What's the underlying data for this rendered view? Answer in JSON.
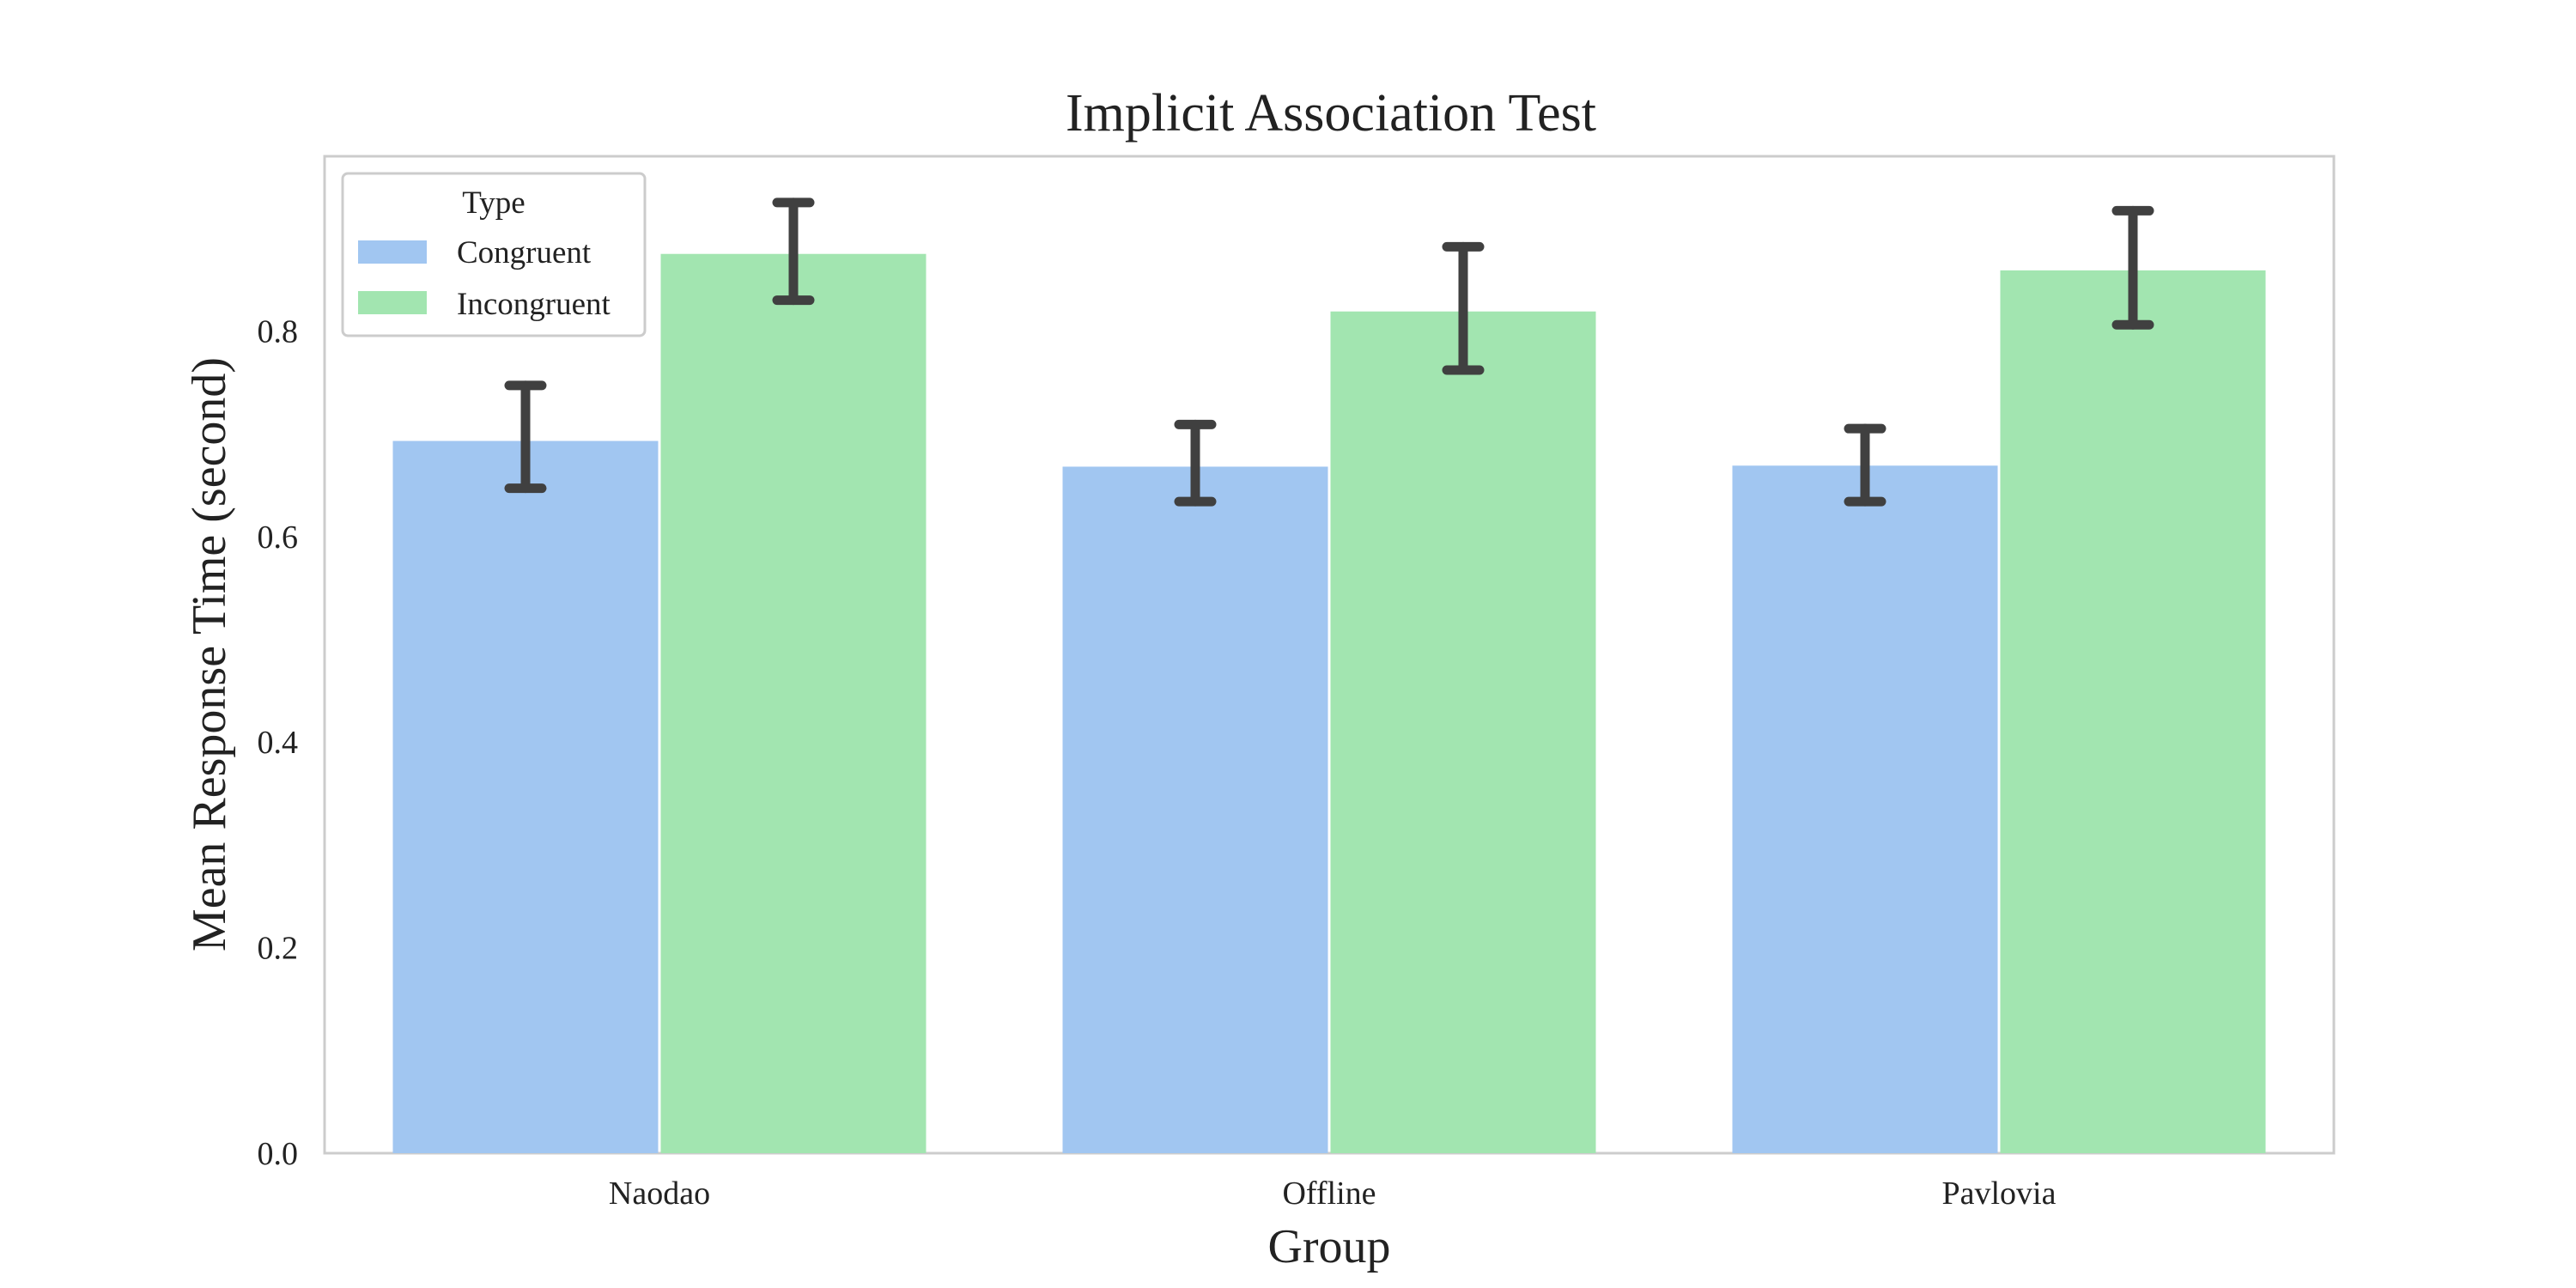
{
  "chart_data": {
    "type": "bar",
    "title": "Implicit Association Test",
    "xlabel": "Group",
    "ylabel": "Mean Response Time (second)",
    "categories": [
      "Naodao",
      "Offline",
      "Pavlovia"
    ],
    "ylim": [
      0,
      0.97
    ],
    "yticks": [
      0.0,
      0.2,
      0.4,
      0.6,
      0.8
    ],
    "ytick_labels": [
      "0.0",
      "0.2",
      "0.4",
      "0.6",
      "0.8"
    ],
    "grid": false,
    "legend": {
      "title": "Type",
      "placement": "top-left"
    },
    "series": [
      {
        "name": "Congruent",
        "color": "#a1c6f1",
        "values": [
          0.693,
          0.668,
          0.669
        ],
        "error_low": [
          0.647,
          0.634,
          0.634
        ],
        "error_high": [
          0.747,
          0.709,
          0.705
        ]
      },
      {
        "name": "Incongruent",
        "color": "#a2e5b0",
        "values": [
          0.875,
          0.819,
          0.859
        ],
        "error_low": [
          0.83,
          0.762,
          0.806
        ],
        "error_high": [
          0.925,
          0.882,
          0.917
        ]
      }
    ]
  }
}
